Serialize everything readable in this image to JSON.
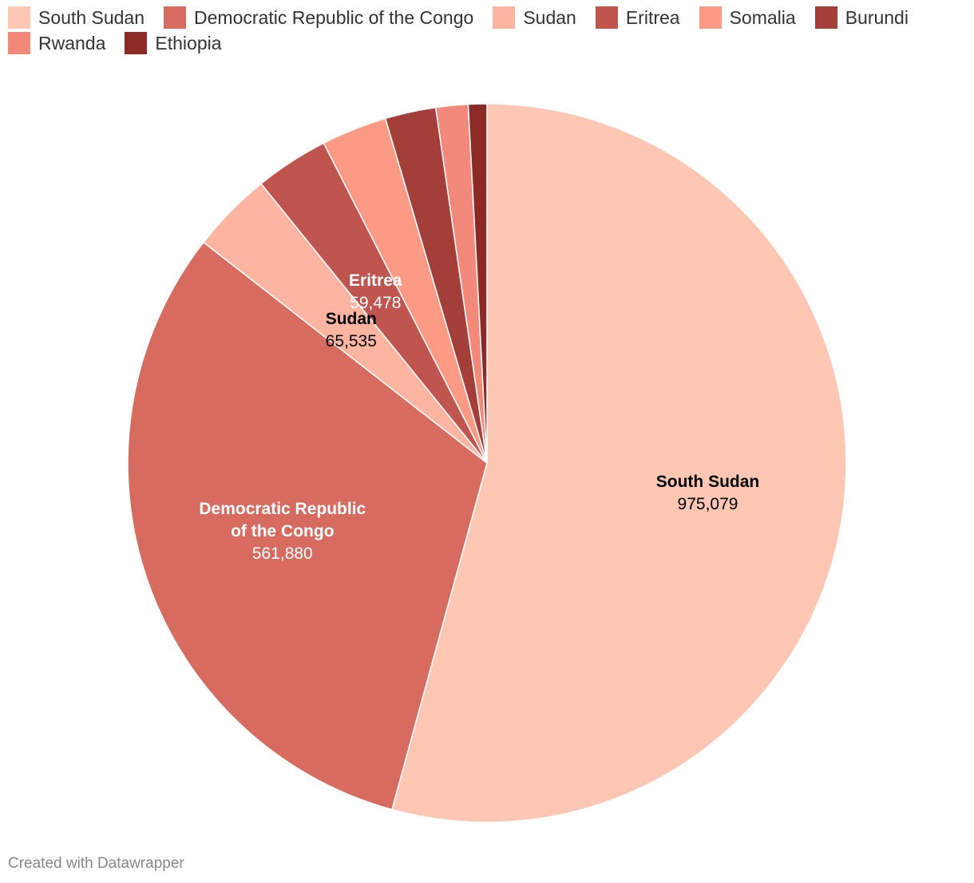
{
  "chart_data": {
    "type": "pie",
    "title": "",
    "categories": [
      "South Sudan",
      "Democratic Republic of the Congo",
      "Sudan",
      "Eritrea",
      "Somalia",
      "Burundi",
      "Rwanda",
      "Ethiopia"
    ],
    "values": [
      975079,
      561880,
      65535,
      59478,
      53000,
      41000,
      26000,
      15000
    ],
    "colors": [
      "#fec7b4",
      "#d86b5f",
      "#fdb4a0",
      "#bf554e",
      "#fd9a86",
      "#a43e38",
      "#f2897b",
      "#8c2a26"
    ],
    "labels": [
      {
        "name_lines": [
          "South Sudan"
        ],
        "value_text": "975,079",
        "text_color": "#000000"
      },
      {
        "name_lines": [
          "Democratic Republic",
          "of the Congo"
        ],
        "value_text": "561,880",
        "text_color": "#ffffff"
      },
      {
        "name_lines": [
          "Sudan"
        ],
        "value_text": "65,535",
        "text_color": "#000000"
      },
      {
        "name_lines": [
          "Eritrea"
        ],
        "value_text": "59,478",
        "text_color": "#ffffff"
      },
      null,
      null,
      null,
      null
    ]
  },
  "footer": {
    "credit": "Created with Datawrapper"
  }
}
